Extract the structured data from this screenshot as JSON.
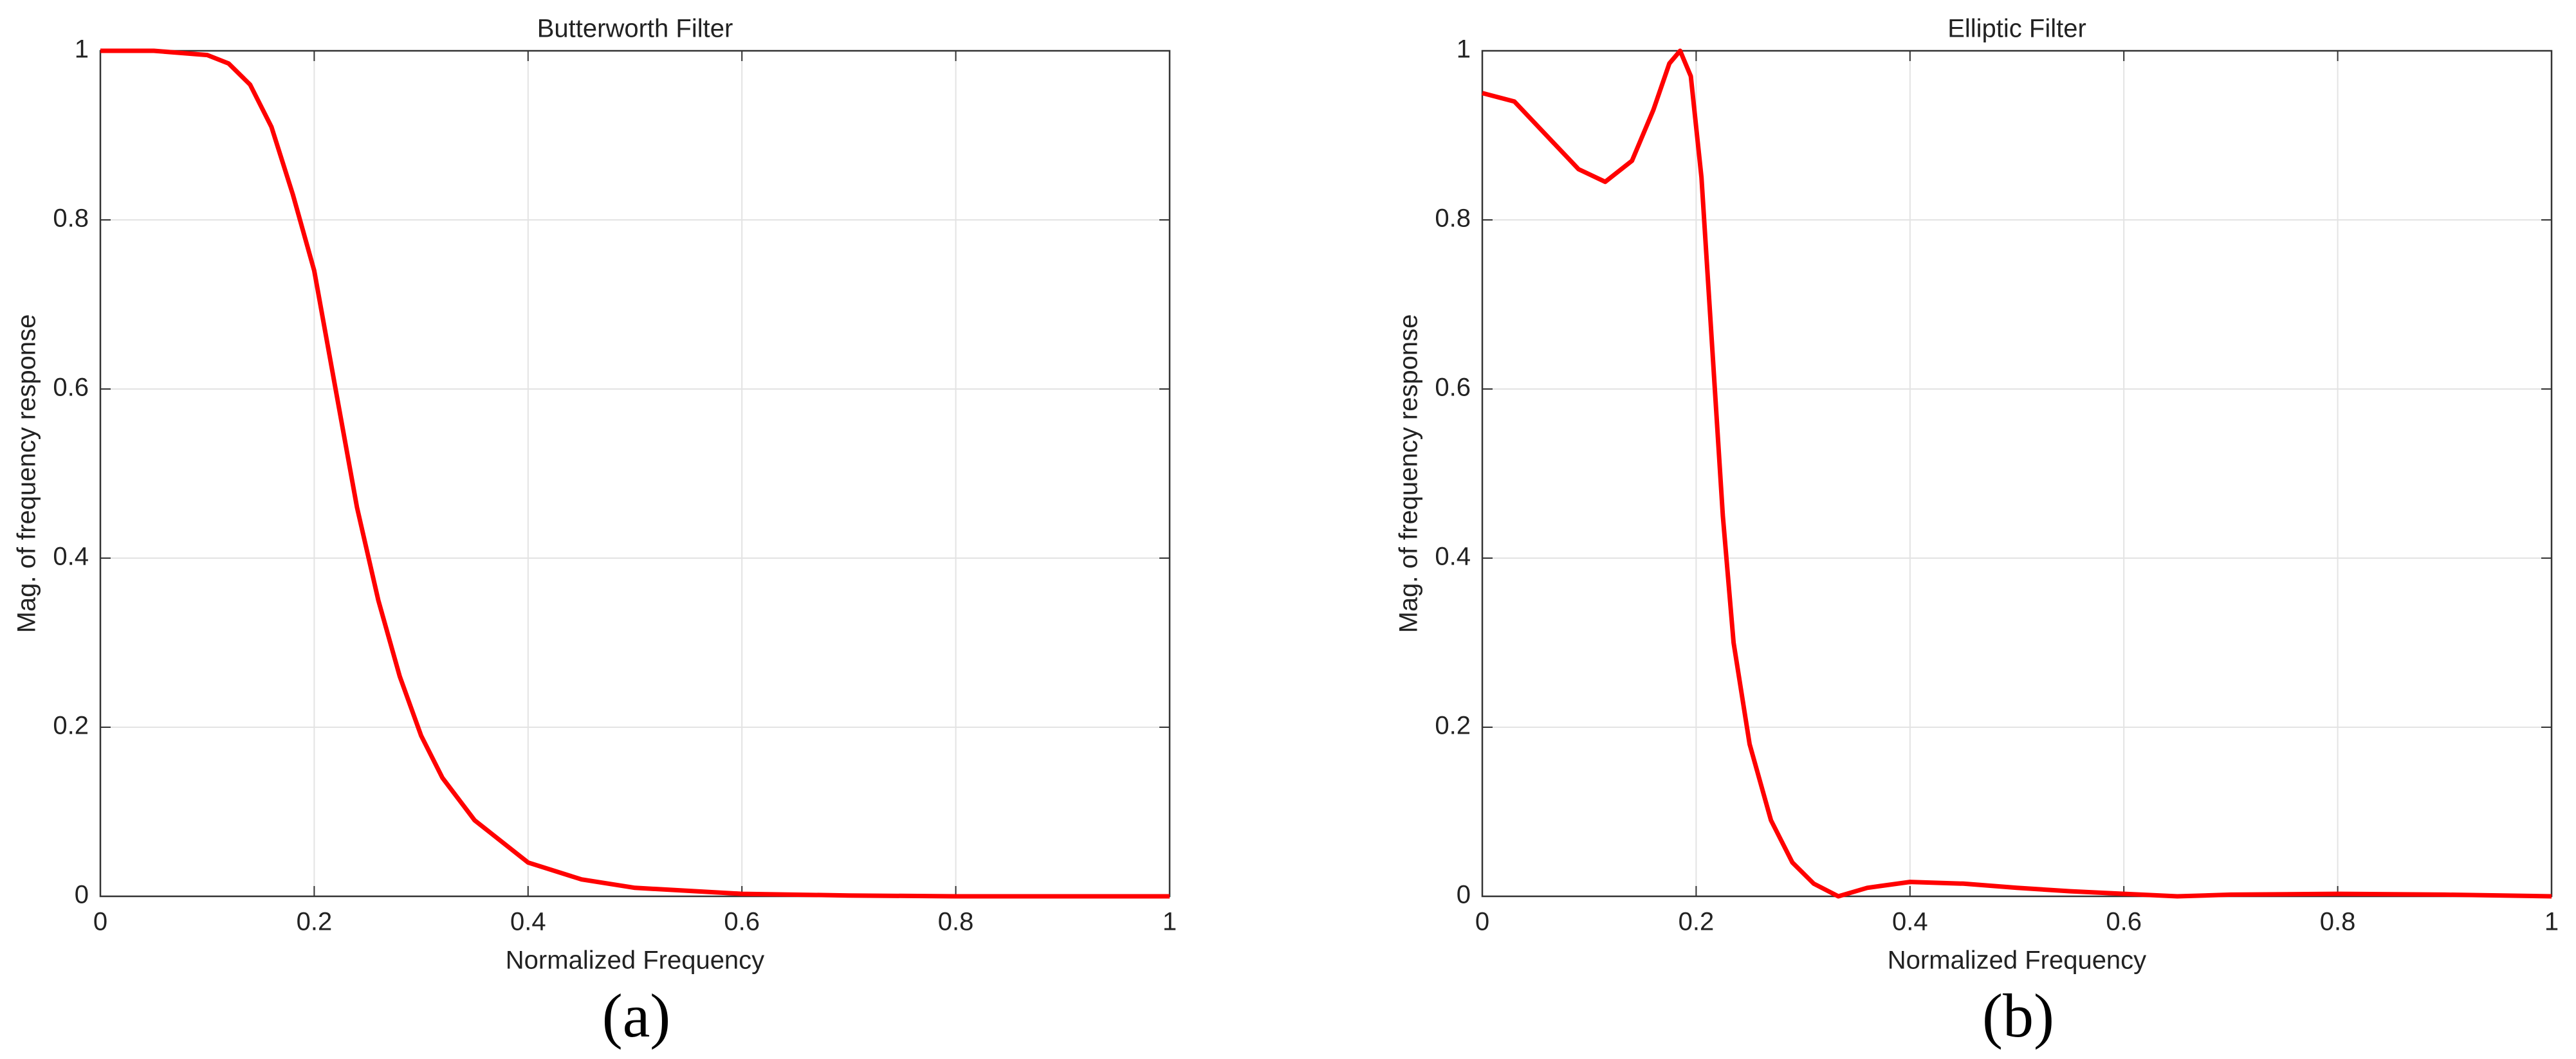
{
  "chart_data": [
    {
      "type": "line",
      "title": "Butterworth Filter",
      "xlabel": "Normalized Frequency",
      "ylabel": "Mag. of frequency response",
      "caption": "(a)",
      "x": [
        0,
        0.05,
        0.1,
        0.12,
        0.14,
        0.16,
        0.18,
        0.2,
        0.22,
        0.24,
        0.26,
        0.28,
        0.3,
        0.32,
        0.35,
        0.4,
        0.45,
        0.5,
        0.6,
        0.7,
        0.8,
        1.0
      ],
      "values": [
        1,
        1,
        0.995,
        0.985,
        0.96,
        0.91,
        0.83,
        0.74,
        0.6,
        0.46,
        0.35,
        0.26,
        0.19,
        0.14,
        0.09,
        0.04,
        0.02,
        0.01,
        0.003,
        0.001,
        0,
        0
      ],
      "color": "#ff0000",
      "xlim": [
        0,
        1
      ],
      "ylim": [
        0,
        1
      ],
      "xticks": [
        0,
        0.2,
        0.4,
        0.6,
        0.8,
        1
      ],
      "yticks": [
        0,
        0.2,
        0.4,
        0.6,
        0.8,
        1
      ],
      "grid": true
    },
    {
      "type": "line",
      "title": "Elliptic Filter",
      "xlabel": "Normalized Frequency",
      "ylabel": "Mag. of frequency response",
      "caption": "(b)",
      "x": [
        0,
        0.03,
        0.06,
        0.09,
        0.115,
        0.14,
        0.16,
        0.175,
        0.185,
        0.195,
        0.205,
        0.215,
        0.225,
        0.235,
        0.25,
        0.27,
        0.29,
        0.31,
        0.333,
        0.36,
        0.4,
        0.45,
        0.5,
        0.55,
        0.6,
        0.65,
        0.7,
        0.8,
        0.9,
        1.0
      ],
      "values": [
        0.95,
        0.94,
        0.9,
        0.86,
        0.845,
        0.87,
        0.93,
        0.985,
        1.0,
        0.97,
        0.85,
        0.65,
        0.45,
        0.3,
        0.18,
        0.09,
        0.04,
        0.015,
        0,
        0.01,
        0.017,
        0.015,
        0.01,
        0.006,
        0.003,
        0,
        0.002,
        0.003,
        0.002,
        0
      ],
      "color": "#ff0000",
      "xlim": [
        0,
        1
      ],
      "ylim": [
        0,
        1
      ],
      "xticks": [
        0,
        0.2,
        0.4,
        0.6,
        0.8,
        1
      ],
      "yticks": [
        0,
        0.2,
        0.4,
        0.6,
        0.8,
        1
      ],
      "grid": true
    }
  ]
}
